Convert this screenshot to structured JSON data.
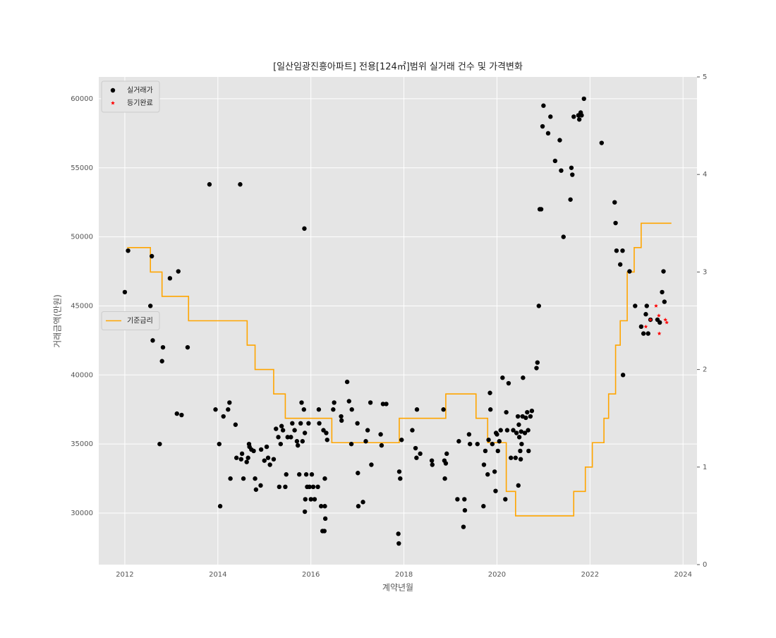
{
  "chart_data": {
    "type": "scatter",
    "title": "[일산임광진흥아파트] 전용[124㎡]범위 실거래 건수 및 가격변화",
    "x_label": "계약년월",
    "y_label": "거래금액(만원)",
    "xlim": [
      2011.44,
      2024.3
    ],
    "xticks": [
      2012,
      2014,
      2016,
      2018,
      2020,
      2022,
      2024
    ],
    "ylim": [
      26270,
      61580
    ],
    "yticks": [
      30000,
      35000,
      40000,
      45000,
      50000,
      55000,
      60000
    ],
    "y2lim": [
      0,
      5
    ],
    "y2ticks": [
      0,
      1,
      2,
      3,
      4,
      5
    ],
    "grid": true,
    "legend_primary": "upper left",
    "legend_secondary": "center left",
    "series": [
      {
        "name": "실거래가",
        "color": "#000000",
        "style": "dot",
        "axis": "y",
        "x": [
          2012.0,
          2012.07,
          2012.55,
          2012.58,
          2012.6,
          2012.75,
          2012.8,
          2012.82,
          2012.97,
          2013.12,
          2013.15,
          2013.22,
          2013.35,
          2013.82,
          2013.95,
          2014.03,
          2014.05,
          2014.12,
          2014.22,
          2014.25,
          2014.27,
          2014.38,
          2014.4,
          2014.48,
          2014.5,
          2014.52,
          2014.55,
          2014.62,
          2014.65,
          2014.67,
          2014.68,
          2014.72,
          2014.77,
          2014.8,
          2014.82,
          2014.92,
          2014.93,
          2015.0,
          2015.05,
          2015.08,
          2015.12,
          2015.2,
          2015.25,
          2015.3,
          2015.32,
          2015.35,
          2015.37,
          2015.4,
          2015.47,
          2015.45,
          2015.5,
          2015.57,
          2015.6,
          2015.65,
          2015.7,
          2015.72,
          2015.75,
          2015.78,
          2015.8,
          2015.82,
          2015.85,
          2015.87,
          2015.86,
          2015.87,
          2015.88,
          2015.9,
          2015.92,
          2015.95,
          2015.97,
          2016.0,
          2016.02,
          2016.05,
          2016.08,
          2016.15,
          2016.17,
          2016.18,
          2016.22,
          2016.25,
          2016.27,
          2016.3,
          2016.31,
          2016.35,
          2016.33,
          2016.29,
          2016.3,
          2016.48,
          2016.5,
          2016.65,
          2016.66,
          2016.78,
          2016.82,
          2016.88,
          2016.87,
          2017.0,
          2017.01,
          2017.02,
          2017.12,
          2017.18,
          2017.22,
          2017.28,
          2017.3,
          2017.5,
          2017.52,
          2017.55,
          2017.62,
          2017.88,
          2017.89,
          2017.9,
          2017.92,
          2017.95,
          2018.18,
          2018.25,
          2018.27,
          2018.28,
          2018.35,
          2018.6,
          2018.61,
          2018.85,
          2018.87,
          2018.88,
          2018.9,
          2018.92,
          2019.15,
          2019.18,
          2019.3,
          2019.31,
          2019.28,
          2019.4,
          2019.42,
          2019.58,
          2019.72,
          2019.71,
          2019.75,
          2019.8,
          2019.82,
          2019.85,
          2019.86,
          2019.9,
          2019.95,
          2019.97,
          2019.98,
          2020.0,
          2020.02,
          2020.05,
          2020.08,
          2020.12,
          2020.18,
          2020.2,
          2020.22,
          2020.25,
          2020.3,
          2020.35,
          2020.4,
          2020.42,
          2020.45,
          2020.46,
          2020.47,
          2020.48,
          2020.5,
          2020.51,
          2020.52,
          2020.53,
          2020.55,
          2020.56,
          2020.6,
          2020.62,
          2020.65,
          2020.67,
          2020.68,
          2020.72,
          2020.75,
          2020.85,
          2020.87,
          2020.9,
          2020.92,
          2020.95,
          2020.98,
          2021.0,
          2021.1,
          2021.15,
          2021.25,
          2021.35,
          2021.38,
          2021.43,
          2021.58,
          2021.6,
          2021.62,
          2021.65,
          2021.75,
          2021.77,
          2021.8,
          2021.82,
          2021.87,
          2022.25,
          2022.53,
          2022.55,
          2022.57,
          2022.65,
          2022.7,
          2022.71,
          2022.85,
          2022.97,
          2023.1,
          2023.15,
          2023.2,
          2023.22,
          2023.25,
          2023.3,
          2023.45,
          2023.5,
          2023.55,
          2023.58,
          2023.6
        ],
        "values": [
          46000,
          49000,
          45000,
          48600,
          42500,
          35000,
          41000,
          42000,
          47000,
          37200,
          47500,
          37100,
          42000,
          53800,
          37500,
          35000,
          30500,
          37000,
          37500,
          38000,
          32500,
          36400,
          34000,
          53800,
          33900,
          34300,
          32500,
          33700,
          34000,
          35000,
          34800,
          34600,
          34500,
          32500,
          31700,
          32000,
          34600,
          33800,
          34800,
          34000,
          33500,
          33900,
          36100,
          35500,
          31900,
          35000,
          36300,
          36000,
          32800,
          31900,
          35500,
          35500,
          36500,
          36000,
          35200,
          34900,
          32800,
          36500,
          38000,
          35200,
          37500,
          35800,
          50600,
          30100,
          31000,
          32800,
          31900,
          36500,
          31900,
          31000,
          32800,
          31900,
          31000,
          31900,
          37500,
          36500,
          30500,
          28700,
          36000,
          32500,
          29600,
          35300,
          35800,
          28700,
          30500,
          37500,
          38000,
          37000,
          36700,
          39500,
          38100,
          37500,
          35000,
          36500,
          32900,
          30500,
          30800,
          35200,
          36000,
          38000,
          33500,
          35700,
          34900,
          37900,
          37900,
          28500,
          27800,
          33000,
          32500,
          35300,
          36000,
          34700,
          34000,
          37500,
          34300,
          33800,
          33500,
          37500,
          33800,
          32500,
          33600,
          34300,
          31000,
          35200,
          31000,
          30200,
          29000,
          35700,
          35000,
          35000,
          33500,
          30500,
          34500,
          32800,
          35300,
          38700,
          37500,
          35000,
          33000,
          31600,
          35800,
          35700,
          34500,
          35200,
          36000,
          39800,
          31000,
          37300,
          36000,
          39400,
          34000,
          36000,
          34000,
          35800,
          37000,
          32000,
          36400,
          35500,
          34500,
          33900,
          35900,
          35000,
          37000,
          39800,
          35800,
          36900,
          37300,
          36000,
          34500,
          37000,
          37400,
          40500,
          40900,
          45000,
          52000,
          52000,
          58000,
          59500,
          57500,
          58700,
          55500,
          57000,
          54800,
          50000,
          52700,
          55000,
          54500,
          58700,
          58800,
          58500,
          59000,
          58800,
          60000,
          56800,
          52500,
          51000,
          49000,
          48000,
          49000,
          40000,
          47500,
          45000,
          43500,
          43000,
          44400,
          45000,
          43000,
          44000,
          44000,
          43800,
          46000,
          47500,
          45300
        ]
      },
      {
        "name": "등기완료",
        "color": "#ff0000",
        "style": "star",
        "axis": "y",
        "x": [
          2023.2,
          2023.3,
          2023.42,
          2023.48,
          2023.49,
          2023.62,
          2023.65
        ],
        "values": [
          43500,
          44000,
          45000,
          44300,
          43000,
          44000,
          43800
        ]
      },
      {
        "name": "기준금리",
        "color": "#ffa500",
        "style": "step",
        "axis": "y2",
        "x": [
          2012.05,
          2012.55,
          2012.8,
          2013.37,
          2014.63,
          2014.8,
          2015.2,
          2015.45,
          2016.45,
          2017.9,
          2018.9,
          2019.55,
          2019.8,
          2020.2,
          2020.4,
          2021.65,
          2021.9,
          2022.05,
          2022.3,
          2022.4,
          2022.55,
          2022.65,
          2022.8,
          2022.95,
          2023.1,
          2023.75
        ],
        "values": [
          3.25,
          3.0,
          2.75,
          2.5,
          2.25,
          2.0,
          1.75,
          1.5,
          1.25,
          1.5,
          1.75,
          1.5,
          1.25,
          0.75,
          0.5,
          0.75,
          1.0,
          1.25,
          1.5,
          1.75,
          2.25,
          2.5,
          3.0,
          3.25,
          3.5,
          3.5
        ]
      }
    ]
  }
}
